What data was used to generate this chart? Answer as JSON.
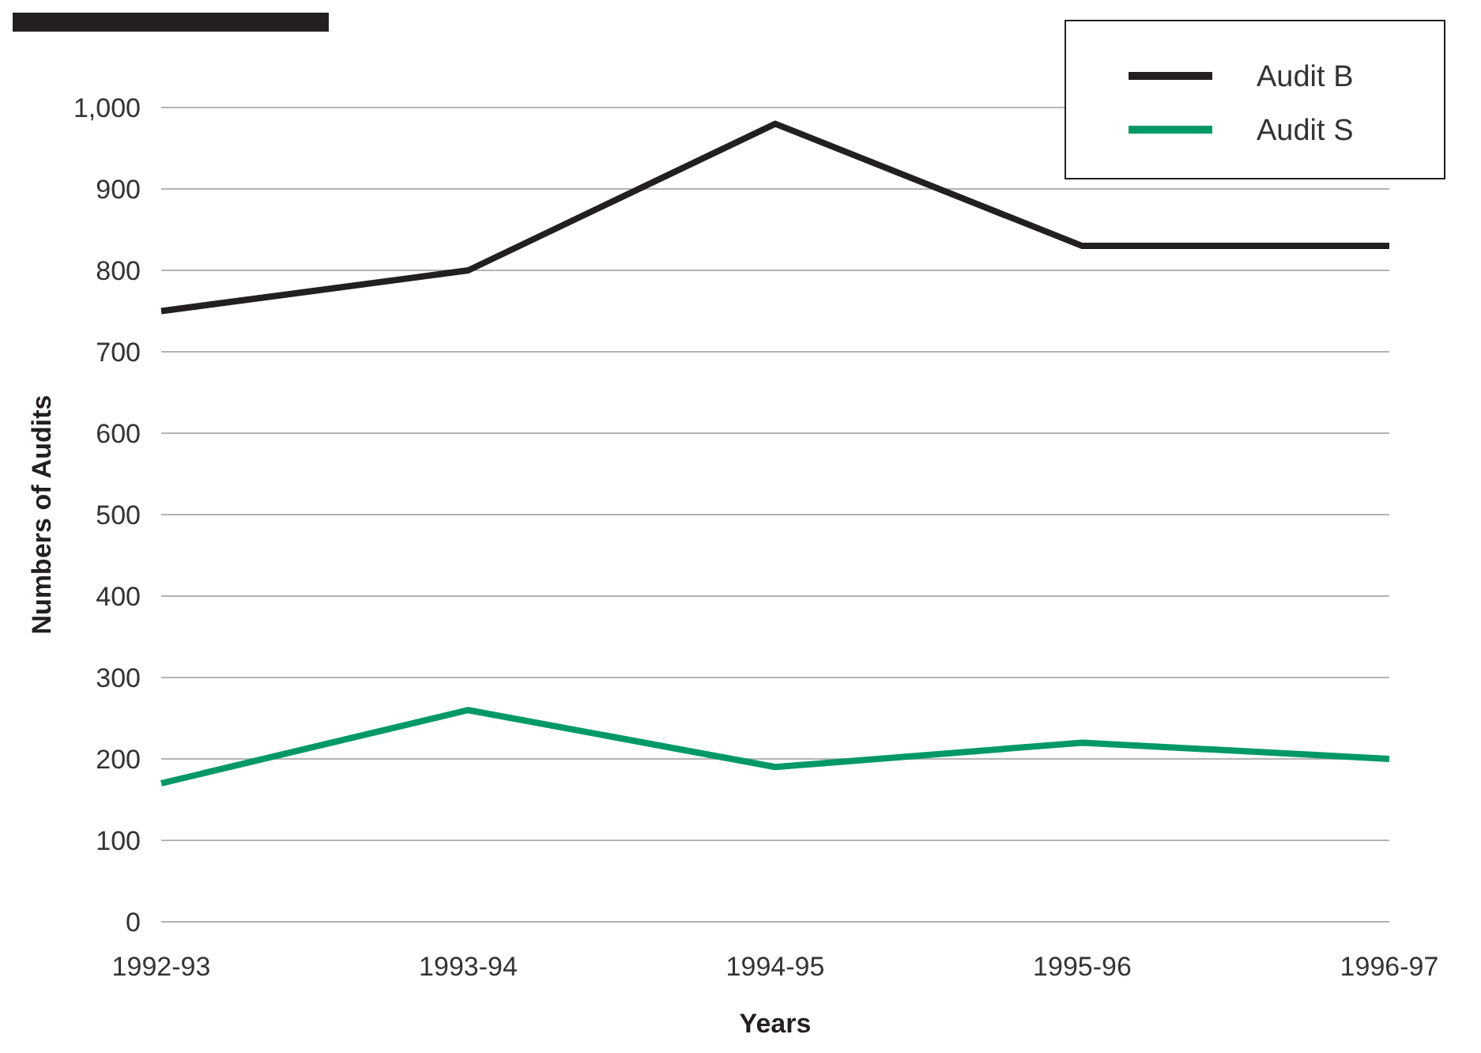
{
  "chart_data": {
    "type": "line",
    "xlabel": "Years",
    "ylabel": "Numbers of Audits",
    "categories": [
      "1992-93",
      "1993-94",
      "1994-95",
      "1995-96",
      "1996-97"
    ],
    "series": [
      {
        "name": "Audit B",
        "color": "#231f20",
        "values": [
          750,
          800,
          980,
          830,
          830
        ]
      },
      {
        "name": "Audit S",
        "color": "#009966",
        "values": [
          170,
          260,
          190,
          220,
          200
        ]
      }
    ],
    "ylim": [
      0,
      1000
    ],
    "yticks": [
      0,
      100,
      200,
      300,
      400,
      500,
      600,
      700,
      800,
      900,
      {
        "value": 1000,
        "label": "1,000"
      }
    ],
    "grid": "y",
    "legend": "top right",
    "marker": "none",
    "line_style": "solid"
  }
}
